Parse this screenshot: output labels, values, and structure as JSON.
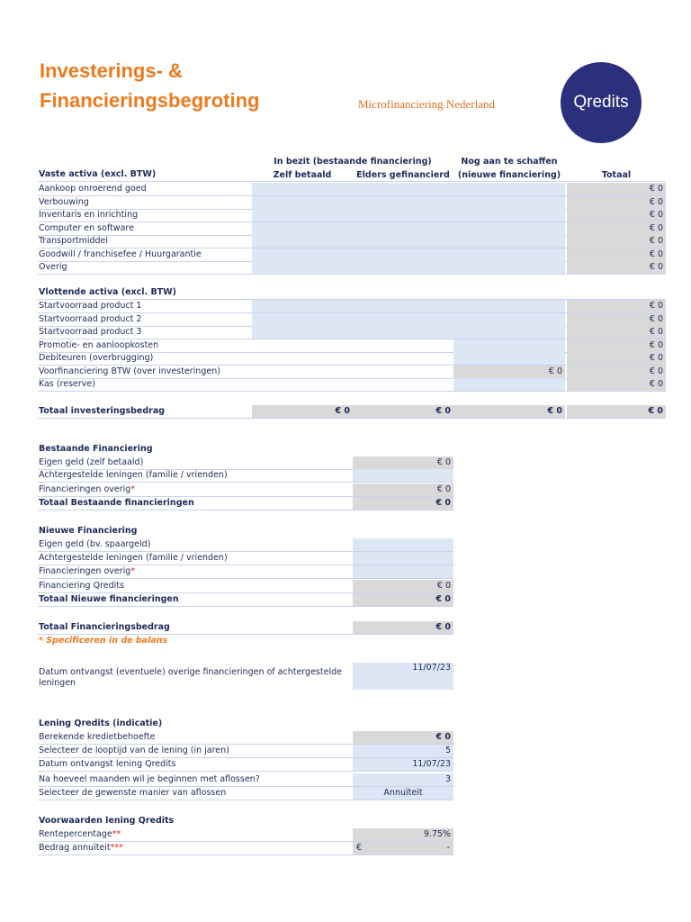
{
  "header": {
    "title_line1": "Investerings- &",
    "title_line2": "Financieringsbegroting",
    "tagline": "Microfinanciering Nederland",
    "logo": "Qredits"
  },
  "investments": {
    "group_header": "In bezit (bestaande financiering)",
    "new_header": "Nog aan te schaffen",
    "columns": [
      "Zelf betaald",
      "Elders gefinancierd",
      "(nieuwe financiering)",
      "Totaal"
    ],
    "sections": [
      {
        "title": "Vaste activa (excl. BTW)",
        "rows": [
          {
            "label": "Aankoop onroerend goed",
            "cells": [
              null,
              null,
              null,
              "€ 0"
            ]
          },
          {
            "label": "Verbouwing",
            "cells": [
              null,
              null,
              null,
              "€ 0"
            ]
          },
          {
            "label": "Inventaris en inrichting",
            "cells": [
              null,
              null,
              null,
              "€ 0"
            ]
          },
          {
            "label": "Computer en software",
            "cells": [
              null,
              null,
              null,
              "€ 0"
            ]
          },
          {
            "label": "Transportmiddel",
            "cells": [
              null,
              null,
              null,
              "€ 0"
            ]
          },
          {
            "label": "Goodwill / franchisefee / Huurgarantie",
            "cells": [
              null,
              null,
              null,
              "€ 0"
            ]
          },
          {
            "label": "Overig",
            "cells": [
              null,
              null,
              null,
              "€ 0"
            ]
          }
        ]
      },
      {
        "title": "Vlottende activa (excl. BTW)",
        "rows": [
          {
            "label": "Startvoorraad product 1",
            "cells": [
              null,
              null,
              null,
              "€ 0"
            ]
          },
          {
            "label": "Startvoorraad product 2",
            "cells": [
              null,
              null,
              null,
              "€ 0"
            ]
          },
          {
            "label": "Startvoorraad product 3",
            "cells": [
              null,
              null,
              null,
              "€ 0"
            ]
          },
          {
            "label": "Promotie- en aanloopkosten",
            "cells": [
              null,
              null,
              null,
              "€ 0"
            ]
          },
          {
            "label": "Debiteuren (overbrugging)",
            "cells": [
              null,
              null,
              null,
              "€ 0"
            ]
          },
          {
            "label": "Voorfinanciering BTW (over investeringen)",
            "cells": [
              null,
              null,
              "€ 0",
              "€ 0"
            ]
          },
          {
            "label": "Kas (reserve)",
            "cells": [
              null,
              null,
              null,
              "€ 0"
            ]
          }
        ]
      }
    ],
    "total": {
      "label": "Totaal investeringsbedrag",
      "cells": [
        "€ 0",
        "€ 0",
        "€ 0",
        "€ 0"
      ]
    }
  },
  "financing": {
    "sections": [
      {
        "title": "Bestaande Financiering",
        "rows": [
          {
            "label": "Eigen geld (zelf betaald)",
            "value": "€ 0"
          },
          {
            "label": "Achtergestelde leningen (familie / vrienden)"
          },
          {
            "label": "Financieringen overig",
            "note": "*",
            "value": "€ 0"
          },
          {
            "label": "Totaal Bestaande financieringen",
            "value": "€ 0"
          }
        ]
      },
      {
        "title": "Nieuwe Financiering",
        "rows": [
          {
            "label": "Eigen geld (bv. spaargeld)"
          },
          {
            "label": "Achtergestelde leningen (familie / vrienden)"
          },
          {
            "label": "Financieringen overig",
            "note": "*"
          },
          {
            "label": "Financiering Qredits",
            "value": "€ 0"
          },
          {
            "label": "Totaal Nieuwe financieringen",
            "value": "€ 0"
          }
        ]
      }
    ],
    "total": {
      "label": "Totaal Financieringsbedrag",
      "value": "€ 0"
    },
    "footnote": "* Specificeren in de balans",
    "date_other": {
      "label": "Datum ontvangst (eventuele) overige financieringen of achtergestelde leningen",
      "value": "11/07/23"
    }
  },
  "loan": {
    "sections": [
      {
        "title": "Lening Qredits (indicatie)",
        "rows": [
          {
            "label": "Berekende kredietbehoefte",
            "value": "€ 0"
          },
          {
            "label": "Selecteer de looptijd van de lening (in jaren)",
            "value": "5"
          },
          {
            "label": "Datum ontvangst lening Qredits",
            "value": "11/07/23"
          },
          {
            "label": "Na hoeveel maanden wil je beginnen met aflossen?",
            "value": "3"
          },
          {
            "label": "Selecteer de gewenste manier van aflossen",
            "value": "Annuïteit"
          }
        ]
      },
      {
        "title": "Voorwaarden lening Qredits",
        "rows": [
          {
            "label": "Rentepercentage",
            "note": "**",
            "value": "9.75%"
          },
          {
            "label": "Bedrag annuïteit",
            "note": "***",
            "value": {
              "currency": "€",
              "amount": "-"
            }
          }
        ]
      }
    ]
  }
}
